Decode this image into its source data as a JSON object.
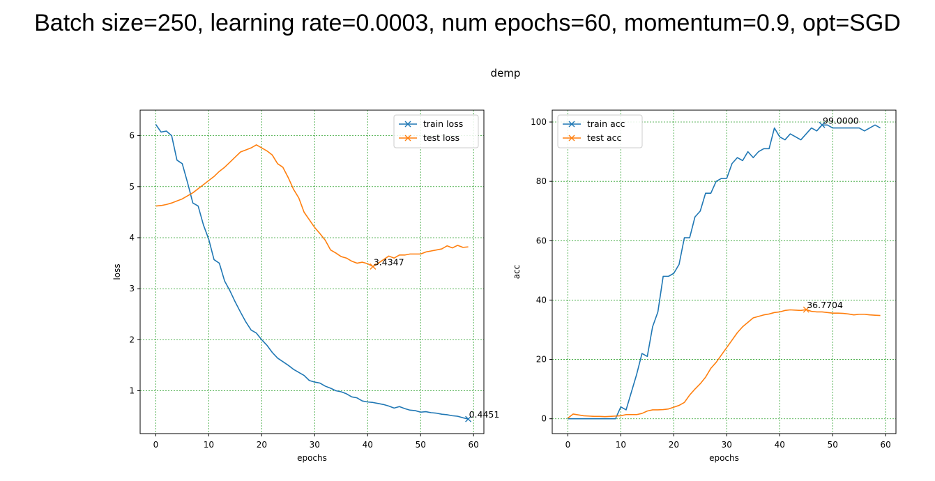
{
  "slide_title": "Batch size=250, learning rate=0.0003, num epochs=60, momentum=0.9, opt=SGD",
  "figure_title": "demp",
  "colors": {
    "train": "#1f77b4",
    "test": "#ff7f0e",
    "grid": "#2ca02c"
  },
  "chart_data": [
    {
      "type": "line",
      "xlabel": "epochs",
      "ylabel": "loss",
      "xlim": [
        -2.95,
        61.95
      ],
      "ylim": [
        0.16,
        6.5
      ],
      "xticks": [
        0,
        10,
        20,
        30,
        40,
        50,
        60
      ],
      "yticks": [
        1,
        2,
        3,
        4,
        5,
        6
      ],
      "grid": true,
      "legend_position": "upper right",
      "marker": "x",
      "x": [
        0,
        1,
        2,
        3,
        4,
        5,
        6,
        7,
        8,
        9,
        10,
        11,
        12,
        13,
        14,
        15,
        16,
        17,
        18,
        19,
        20,
        21,
        22,
        23,
        24,
        25,
        26,
        27,
        28,
        29,
        30,
        31,
        32,
        33,
        34,
        35,
        36,
        37,
        38,
        39,
        40,
        41,
        42,
        43,
        44,
        45,
        46,
        47,
        48,
        49,
        50,
        51,
        52,
        53,
        54,
        55,
        56,
        57,
        58,
        59
      ],
      "series": [
        {
          "name": "train loss",
          "values": [
            6.22,
            6.07,
            6.09,
            6.0,
            5.52,
            5.45,
            5.08,
            4.68,
            4.62,
            4.25,
            3.97,
            3.57,
            3.5,
            3.15,
            2.96,
            2.74,
            2.54,
            2.35,
            2.19,
            2.13,
            2.0,
            1.89,
            1.75,
            1.64,
            1.57,
            1.5,
            1.42,
            1.36,
            1.3,
            1.2,
            1.17,
            1.15,
            1.09,
            1.05,
            1.0,
            0.98,
            0.94,
            0.88,
            0.86,
            0.8,
            0.78,
            0.77,
            0.75,
            0.73,
            0.7,
            0.66,
            0.69,
            0.65,
            0.62,
            0.61,
            0.58,
            0.59,
            0.57,
            0.56,
            0.54,
            0.53,
            0.51,
            0.5,
            0.47,
            0.4451
          ],
          "annotation": {
            "x": 59,
            "y": 0.4451,
            "text": "0.4451"
          }
        },
        {
          "name": "test loss",
          "values": [
            4.62,
            4.63,
            4.65,
            4.68,
            4.72,
            4.76,
            4.82,
            4.88,
            4.96,
            5.04,
            5.12,
            5.2,
            5.3,
            5.38,
            5.48,
            5.58,
            5.68,
            5.72,
            5.76,
            5.82,
            5.76,
            5.7,
            5.62,
            5.45,
            5.38,
            5.18,
            4.95,
            4.78,
            4.5,
            4.35,
            4.2,
            4.08,
            3.95,
            3.76,
            3.7,
            3.63,
            3.6,
            3.54,
            3.5,
            3.52,
            3.49,
            3.4347,
            3.5,
            3.57,
            3.64,
            3.6,
            3.66,
            3.66,
            3.68,
            3.68,
            3.68,
            3.72,
            3.74,
            3.76,
            3.78,
            3.84,
            3.8,
            3.85,
            3.81,
            3.82
          ],
          "annotation": {
            "x": 41,
            "y": 3.4347,
            "text": "3.4347"
          }
        }
      ]
    },
    {
      "type": "line",
      "xlabel": "epochs",
      "ylabel": "acc",
      "xlim": [
        -2.95,
        61.95
      ],
      "ylim": [
        -5,
        104
      ],
      "xticks": [
        0,
        10,
        20,
        30,
        40,
        50,
        60
      ],
      "yticks": [
        0,
        20,
        40,
        60,
        80,
        100
      ],
      "grid": true,
      "legend_position": "upper left",
      "marker": "x",
      "x": [
        0,
        1,
        2,
        3,
        4,
        5,
        6,
        7,
        8,
        9,
        10,
        11,
        12,
        13,
        14,
        15,
        16,
        17,
        18,
        19,
        20,
        21,
        22,
        23,
        24,
        25,
        26,
        27,
        28,
        29,
        30,
        31,
        32,
        33,
        34,
        35,
        36,
        37,
        38,
        39,
        40,
        41,
        42,
        43,
        44,
        45,
        46,
        47,
        48,
        49,
        50,
        51,
        52,
        53,
        54,
        55,
        56,
        57,
        58,
        59
      ],
      "series": [
        {
          "name": "train acc",
          "values": [
            0,
            0,
            0,
            0,
            0,
            0,
            0,
            0,
            0,
            0,
            4,
            3,
            9,
            15,
            22,
            21,
            31,
            36,
            48,
            48,
            49,
            52,
            61,
            61,
            68,
            70,
            76,
            76,
            80,
            81,
            81,
            86,
            88,
            87,
            90,
            88,
            90,
            91,
            91,
            98,
            95,
            94,
            96,
            95,
            94,
            96,
            98,
            97,
            99.0,
            99,
            98,
            98,
            98,
            98,
            98,
            98,
            97,
            98,
            99,
            98
          ],
          "annotation": {
            "x": 48,
            "y": 99.0,
            "text": "99.0000"
          }
        },
        {
          "name": "test acc",
          "values": [
            0.2,
            1.6,
            1.3,
            1.0,
            0.9,
            0.8,
            0.8,
            0.7,
            0.8,
            0.9,
            1.0,
            1.4,
            1.4,
            1.4,
            1.8,
            2.6,
            3.0,
            3.0,
            3.1,
            3.3,
            3.9,
            4.5,
            5.5,
            8.0,
            10.0,
            11.8,
            14.0,
            17.0,
            19.0,
            21.5,
            24.0,
            26.5,
            29.0,
            31.0,
            32.5,
            34.0,
            34.5,
            35.0,
            35.3,
            35.8,
            36.0,
            36.5,
            36.7,
            36.6,
            36.5,
            36.7704,
            36.2,
            36.0,
            36.0,
            35.8,
            35.6,
            35.6,
            35.5,
            35.3,
            35.0,
            35.2,
            35.2,
            35.0,
            34.9,
            34.8
          ],
          "annotation": {
            "x": 45,
            "y": 36.7704,
            "text": "36.7704"
          }
        }
      ]
    }
  ]
}
